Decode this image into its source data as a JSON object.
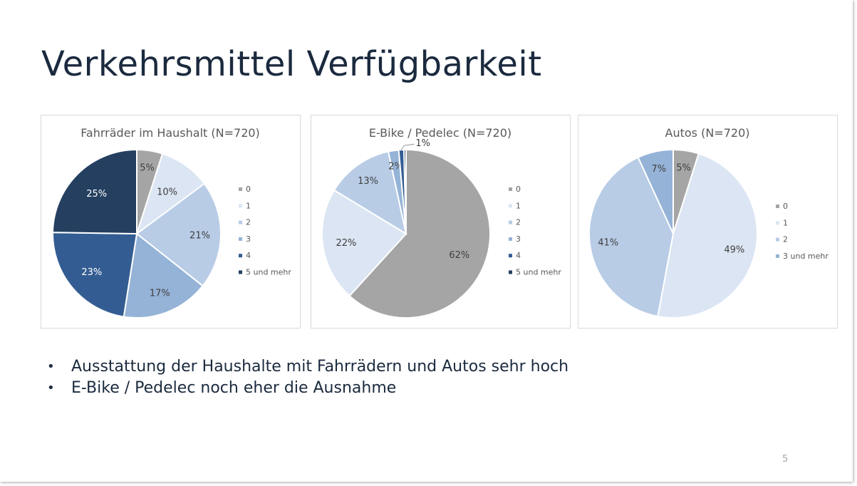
{
  "slide": {
    "title": "Verkehrsmittel Verfügbarkeit",
    "bullets": [
      "Ausstattung der Haushalte mit Fahrrädern und Autos sehr hoch",
      "E-Bike / Pedelec noch eher die Ausnahme"
    ],
    "page_number": "5",
    "bullet_glyph": "•"
  },
  "chart_data": [
    {
      "type": "pie",
      "title": "Fahrräder im Haushalt (N=720)",
      "categories": [
        "0",
        "1",
        "2",
        "3",
        "4",
        "5 und mehr"
      ],
      "values": [
        5,
        10,
        21,
        17,
        23,
        25
      ],
      "labels": [
        "5%",
        "10%",
        "21%",
        "17%",
        "23%",
        "25%"
      ],
      "colors": [
        "#a5a5a5",
        "#dbe5f3",
        "#b8cce6",
        "#95b3d7",
        "#335d92",
        "#243f60"
      ],
      "legend_position": "right"
    },
    {
      "type": "pie",
      "title": "E-Bike / Pedelec (N=720)",
      "categories": [
        "0",
        "1",
        "2",
        "3",
        "4",
        "5 und mehr"
      ],
      "values": [
        62,
        22,
        13,
        2,
        1,
        0.4
      ],
      "labels": [
        "62%",
        "22%",
        "13%",
        "2%",
        "1%",
        ""
      ],
      "colors": [
        "#a5a5a5",
        "#dbe5f3",
        "#b8cce6",
        "#95b3d7",
        "#335d92",
        "#243f60"
      ],
      "legend_position": "right"
    },
    {
      "type": "pie",
      "title": "Autos (N=720)",
      "categories": [
        "0",
        "1",
        "2",
        "3 und mehr"
      ],
      "values": [
        5,
        49,
        41,
        7
      ],
      "labels": [
        "5%",
        "49%",
        "41%",
        "7%"
      ],
      "colors": [
        "#a5a5a5",
        "#dbe5f3",
        "#b8cce6",
        "#95b3d7"
      ],
      "legend_position": "right"
    }
  ]
}
